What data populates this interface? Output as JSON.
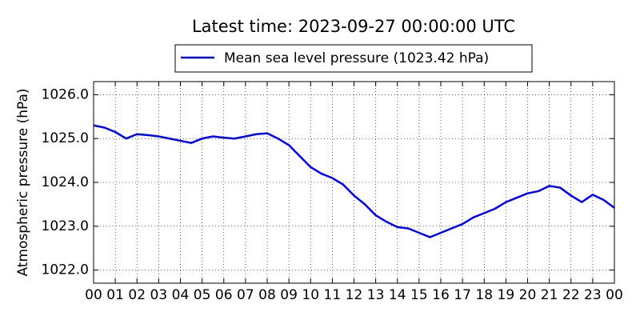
{
  "chart_data": {
    "type": "line",
    "title": "Latest time: 2023-09-27 00:00:00 UTC",
    "y_label": "Atmospheric pressure (hPa)",
    "x": [
      0,
      0.5,
      1,
      1.5,
      2,
      2.5,
      3,
      3.5,
      4,
      4.5,
      5,
      5.5,
      6,
      6.5,
      7,
      7.5,
      8,
      8.5,
      9,
      9.5,
      10,
      10.5,
      11,
      11.5,
      12,
      12.5,
      13,
      13.5,
      14,
      14.5,
      15,
      15.5,
      16,
      16.5,
      17,
      17.5,
      18,
      18.5,
      19,
      19.5,
      20,
      20.5,
      21,
      21.5,
      22,
      22.5,
      23,
      23.5,
      24
    ],
    "series": [
      {
        "name": "Mean sea level pressure (1023.42 hPa)",
        "color": "#0000ff",
        "values": [
          1025.3,
          1025.25,
          1025.15,
          1025.0,
          1025.1,
          1025.08,
          1025.05,
          1025.0,
          1024.95,
          1024.9,
          1025.0,
          1025.05,
          1025.02,
          1025.0,
          1025.05,
          1025.1,
          1025.12,
          1025.0,
          1024.85,
          1024.6,
          1024.35,
          1024.2,
          1024.1,
          1023.95,
          1023.7,
          1023.5,
          1023.25,
          1023.1,
          1022.98,
          1022.95,
          1022.85,
          1022.75,
          1022.85,
          1022.95,
          1023.05,
          1023.2,
          1023.3,
          1023.4,
          1023.55,
          1023.65,
          1023.75,
          1023.8,
          1023.92,
          1023.88,
          1023.7,
          1023.55,
          1023.72,
          1023.6,
          1023.42
        ]
      }
    ],
    "xlim": [
      0,
      24
    ],
    "xticks": [
      {
        "value": 0,
        "label": "00"
      },
      {
        "value": 1,
        "label": "01"
      },
      {
        "value": 2,
        "label": "02"
      },
      {
        "value": 3,
        "label": "03"
      },
      {
        "value": 4,
        "label": "04"
      },
      {
        "value": 5,
        "label": "05"
      },
      {
        "value": 6,
        "label": "06"
      },
      {
        "value": 7,
        "label": "07"
      },
      {
        "value": 8,
        "label": "08"
      },
      {
        "value": 9,
        "label": "09"
      },
      {
        "value": 10,
        "label": "10"
      },
      {
        "value": 11,
        "label": "11"
      },
      {
        "value": 12,
        "label": "12"
      },
      {
        "value": 13,
        "label": "13"
      },
      {
        "value": 14,
        "label": "14"
      },
      {
        "value": 15,
        "label": "15"
      },
      {
        "value": 16,
        "label": "16"
      },
      {
        "value": 17,
        "label": "17"
      },
      {
        "value": 18,
        "label": "18"
      },
      {
        "value": 19,
        "label": "19"
      },
      {
        "value": 20,
        "label": "20"
      },
      {
        "value": 21,
        "label": "21"
      },
      {
        "value": 22,
        "label": "22"
      },
      {
        "value": 23,
        "label": "23"
      },
      {
        "value": 24,
        "label": "00"
      }
    ],
    "ylim": [
      1021.7,
      1026.3
    ],
    "yticks": [
      {
        "value": 1022,
        "label": "1022.0"
      },
      {
        "value": 1023,
        "label": "1023.0"
      },
      {
        "value": 1024,
        "label": "1024.0"
      },
      {
        "value": 1025,
        "label": "1025.0"
      },
      {
        "value": 1026,
        "label": "1026.0"
      }
    ],
    "grid": true
  }
}
